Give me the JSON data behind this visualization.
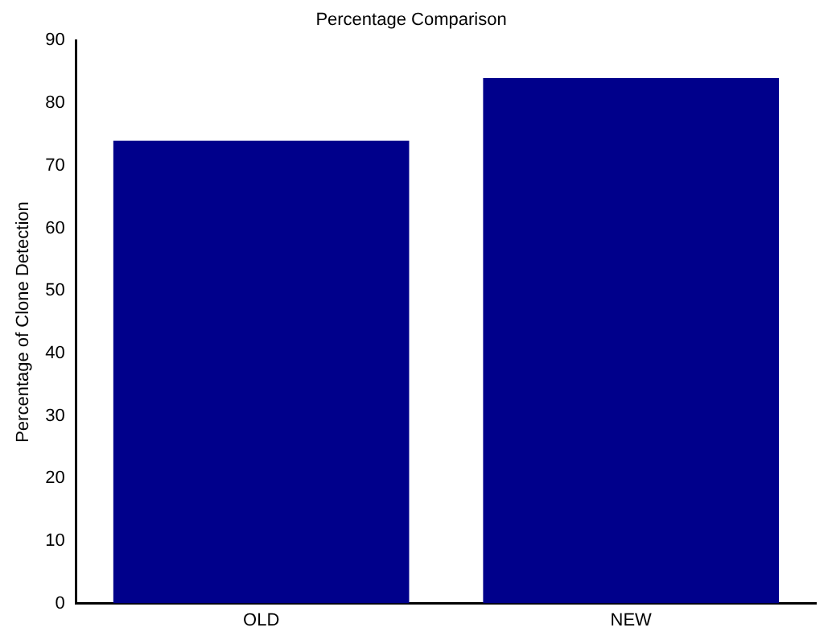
{
  "chart_data": {
    "type": "bar",
    "title": "Percentage Comparison",
    "ylabel": "Percentage of Clone Detection",
    "categories": [
      "OLD",
      "NEW"
    ],
    "values": [
      74,
      84
    ],
    "color": "#00008b",
    "ylim": [
      0,
      90
    ],
    "yticks": [
      0,
      10,
      20,
      30,
      40,
      50,
      60,
      70,
      80,
      90
    ],
    "grid": false,
    "legend": false
  }
}
